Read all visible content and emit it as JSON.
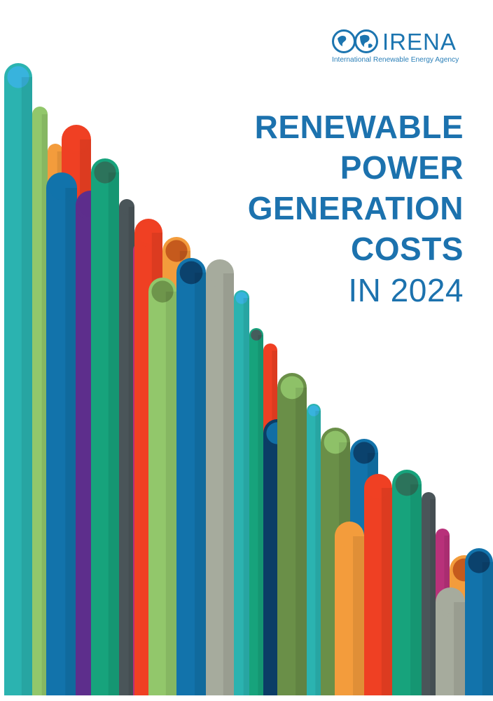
{
  "brand": {
    "name": "IRENA",
    "tagline": "International Renewable Energy Agency",
    "color": "#1c75b0"
  },
  "title": {
    "lines": [
      "RENEWABLE",
      "POWER",
      "GENERATION",
      "COSTS"
    ],
    "year_line": "IN 2024",
    "color": "#1c72ae"
  },
  "palette": {
    "teal": "#2bb3b0",
    "sky": "#3ab3e2",
    "lime": "#92c76b",
    "olive": "#6a8f48",
    "orange": "#f39c3c",
    "red": "#ef4023",
    "green": "#17a37c",
    "navy": "#0b3d66",
    "blue": "#1273ab",
    "purple": "#5d2e8c",
    "slate": "#4a5559",
    "magenta": "#b8317a",
    "gray": "#a6ab9d",
    "darkgreen": "#2f6e58",
    "brown": "#c0531a"
  }
}
